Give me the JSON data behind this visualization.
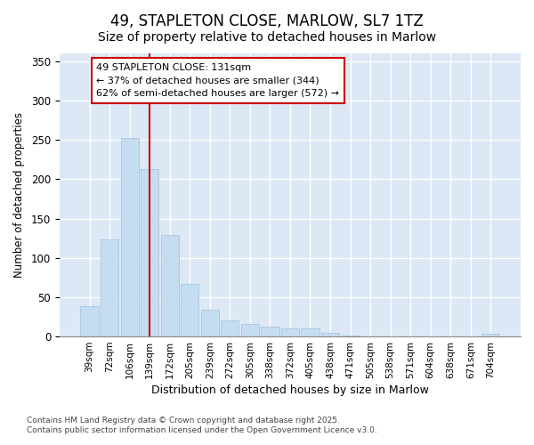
{
  "title": "49, STAPLETON CLOSE, MARLOW, SL7 1TZ",
  "subtitle": "Size of property relative to detached houses in Marlow",
  "xlabel": "Distribution of detached houses by size in Marlow",
  "ylabel": "Number of detached properties",
  "bar_labels": [
    "39sqm",
    "72sqm",
    "106sqm",
    "139sqm",
    "172sqm",
    "205sqm",
    "239sqm",
    "272sqm",
    "305sqm",
    "338sqm",
    "372sqm",
    "405sqm",
    "438sqm",
    "471sqm",
    "505sqm",
    "538sqm",
    "571sqm",
    "604sqm",
    "638sqm",
    "671sqm",
    "704sqm"
  ],
  "bar_values": [
    38,
    123,
    253,
    213,
    129,
    67,
    34,
    20,
    16,
    13,
    10,
    10,
    5,
    1,
    0,
    0,
    0,
    0,
    0,
    0,
    3
  ],
  "bar_color": "#c5ddf0",
  "bar_edge_color": "#a0c0e0",
  "annotation_box_text": "49 STAPLETON CLOSE: 131sqm\n← 37% of detached houses are smaller (344)\n62% of semi-detached houses are larger (572) →",
  "vline_color": "#cc0000",
  "vline_x": 3,
  "ylim": [
    0,
    360
  ],
  "yticks": [
    0,
    50,
    100,
    150,
    200,
    250,
    300,
    350
  ],
  "background_color": "#dce8f5",
  "fig_background": "#ffffff",
  "footer_line1": "Contains HM Land Registry data © Crown copyright and database right 2025.",
  "footer_line2": "Contains public sector information licensed under the Open Government Licence v3.0.",
  "title_fontsize": 12,
  "subtitle_fontsize": 10
}
